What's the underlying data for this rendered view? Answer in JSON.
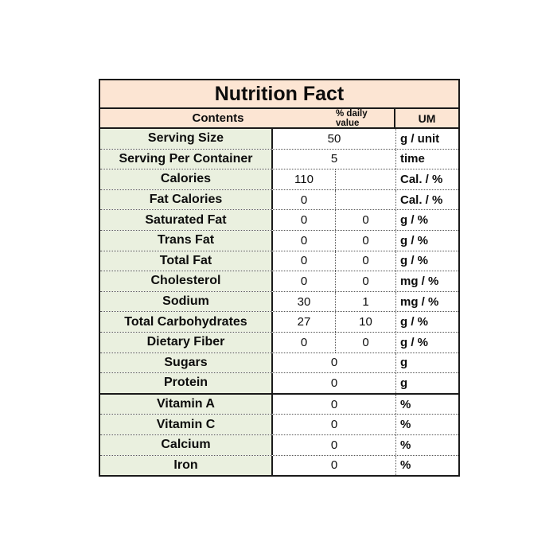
{
  "table": {
    "title": "Nutrition Fact",
    "header": {
      "contents": "Contents",
      "daily_value": "% daily value",
      "unit": "UM"
    },
    "colors": {
      "header_bg": "#fce5d3",
      "label_bg": "#eaf0df",
      "border": "#1a1a1a",
      "dotted_border": "#555555"
    },
    "rows": [
      {
        "label": "Serving Size",
        "span": true,
        "value": "50",
        "um": "g / unit",
        "solid_bottom": false
      },
      {
        "label": "Serving Per Container",
        "span": true,
        "value": "5",
        "um": "time",
        "solid_bottom": false
      },
      {
        "label": "Calories",
        "span": false,
        "value1": "110",
        "value2": "",
        "um": "Cal. / %",
        "solid_bottom": false
      },
      {
        "label": "Fat Calories",
        "span": false,
        "value1": "0",
        "value2": "",
        "um": "Cal. / %",
        "solid_bottom": false
      },
      {
        "label": "Saturated Fat",
        "span": false,
        "value1": "0",
        "value2": "0",
        "um": "g / %",
        "solid_bottom": false
      },
      {
        "label": "Trans Fat",
        "span": false,
        "value1": "0",
        "value2": "0",
        "um": "g / %",
        "solid_bottom": false
      },
      {
        "label": "Total Fat",
        "span": false,
        "value1": "0",
        "value2": "0",
        "um": "g / %",
        "solid_bottom": false
      },
      {
        "label": "Cholesterol",
        "span": false,
        "value1": "0",
        "value2": "0",
        "um": "mg / %",
        "solid_bottom": false
      },
      {
        "label": "Sodium",
        "span": false,
        "value1": "30",
        "value2": "1",
        "um": "mg / %",
        "solid_bottom": false
      },
      {
        "label": "Total Carbohydrates",
        "span": false,
        "value1": "27",
        "value2": "10",
        "um": "g / %",
        "solid_bottom": false
      },
      {
        "label": "Dietary Fiber",
        "span": false,
        "value1": "0",
        "value2": "0",
        "um": "g / %",
        "solid_bottom": false
      },
      {
        "label": "Sugars",
        "span": true,
        "value": "0",
        "um": "g",
        "solid_bottom": false
      },
      {
        "label": "Protein",
        "span": true,
        "value": "0",
        "um": "g",
        "solid_bottom": true
      },
      {
        "label": "Vitamin A",
        "span": true,
        "value": "0",
        "um": "%",
        "solid_bottom": false
      },
      {
        "label": "Vitamin C",
        "span": true,
        "value": "0",
        "um": "%",
        "solid_bottom": false
      },
      {
        "label": "Calcium",
        "span": true,
        "value": "0",
        "um": "%",
        "solid_bottom": false
      },
      {
        "label": "Iron",
        "span": true,
        "value": "0",
        "um": "%",
        "solid_bottom": false
      }
    ]
  }
}
